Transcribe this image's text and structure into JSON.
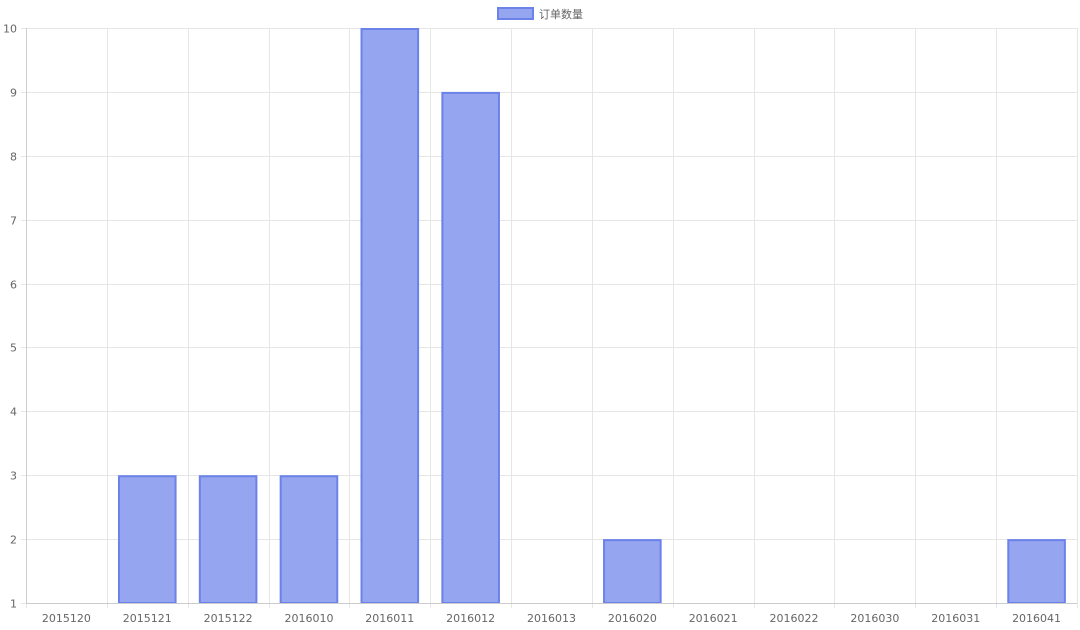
{
  "chart_data": {
    "type": "bar",
    "title": "",
    "xlabel": "",
    "ylabel": "",
    "categories": [
      "2015120",
      "2015121",
      "2015122",
      "2016010",
      "2016011",
      "2016012",
      "2016013",
      "2016020",
      "2016021",
      "2016022",
      "2016030",
      "2016031",
      "2016041"
    ],
    "series": [
      {
        "name": "订单数量",
        "values": [
          null,
          3,
          3,
          3,
          10,
          9,
          null,
          2,
          null,
          null,
          null,
          null,
          2
        ]
      }
    ],
    "ylim": [
      1,
      10
    ],
    "yticks": [
      1,
      2,
      3,
      4,
      5,
      6,
      7,
      8,
      9,
      10
    ],
    "grid": true,
    "legend_position": "top-center",
    "colors": {
      "bar_fill": "#95a5f0",
      "bar_border": "#6b82e8",
      "grid": "#e6e6e6",
      "tick_text": "#666666"
    }
  }
}
